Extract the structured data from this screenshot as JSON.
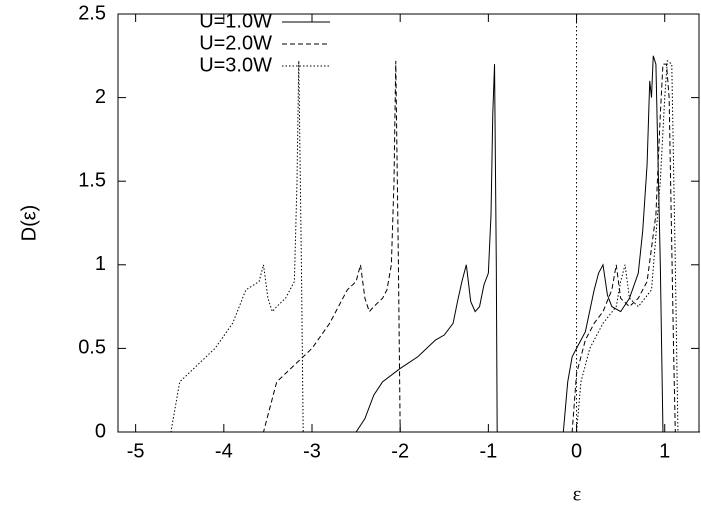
{
  "chart_data": {
    "type": "line",
    "xlabel": "ε",
    "ylabel": "D(ε)",
    "xlim": [
      -5.2,
      1.4
    ],
    "ylim": [
      0,
      2.5
    ],
    "xticks": [
      -5,
      -4,
      -3,
      -2,
      -1,
      0,
      1
    ],
    "yticks": [
      0,
      0.5,
      1,
      1.5,
      2,
      2.5
    ],
    "xzeroaxis": true,
    "legend": "top-left",
    "series": [
      {
        "name": "U=1.0W",
        "color": "#000000",
        "dash": "solid",
        "x": [
          -5.2,
          -2.5,
          -2.4,
          -2.3,
          -2.2,
          -2.0,
          -1.8,
          -1.6,
          -1.5,
          -1.4,
          -1.35,
          -1.3,
          -1.25,
          -1.2,
          -1.15,
          -1.1,
          -1.05,
          -1.0,
          -0.97,
          -0.95,
          -0.93,
          -0.91,
          -0.9,
          -0.15,
          -0.1,
          -0.05,
          0,
          0.1,
          0.2,
          0.25,
          0.3,
          0.35,
          0.4,
          0.5,
          0.6,
          0.7,
          0.75,
          0.8,
          0.83,
          0.85,
          0.87,
          0.9,
          0.95,
          0.98,
          1.4
        ],
        "values": [
          0,
          0,
          0.08,
          0.22,
          0.3,
          0.38,
          0.45,
          0.55,
          0.58,
          0.65,
          0.78,
          0.9,
          1.0,
          0.78,
          0.72,
          0.75,
          0.88,
          0.95,
          1.3,
          1.9,
          2.2,
          1.0,
          0,
          0,
          0.3,
          0.45,
          0.5,
          0.6,
          0.85,
          0.95,
          1.0,
          0.82,
          0.75,
          0.72,
          0.8,
          0.95,
          1.2,
          1.6,
          2.1,
          2.0,
          2.25,
          2.2,
          1.0,
          0,
          0
        ]
      },
      {
        "name": "U=2.0W",
        "color": "#000000",
        "dash": "dashed",
        "x": [
          -5.2,
          -3.55,
          -3.4,
          -3.2,
          -3.0,
          -2.8,
          -2.6,
          -2.5,
          -2.45,
          -2.4,
          -2.35,
          -2.3,
          -2.2,
          -2.15,
          -2.1,
          -2.07,
          -2.05,
          -2.02,
          -2.0,
          -0.05,
          0,
          0.1,
          0.2,
          0.3,
          0.4,
          0.45,
          0.5,
          0.6,
          0.7,
          0.8,
          0.9,
          0.95,
          0.98,
          1.02,
          1.05,
          1.1,
          1.12,
          1.4
        ],
        "values": [
          0,
          0,
          0.3,
          0.4,
          0.5,
          0.65,
          0.85,
          0.9,
          1.0,
          0.8,
          0.72,
          0.75,
          0.8,
          0.85,
          1.0,
          1.5,
          2.22,
          1.0,
          0,
          0,
          0.35,
          0.55,
          0.65,
          0.72,
          0.85,
          1.0,
          0.8,
          0.75,
          0.8,
          0.9,
          1.3,
          1.9,
          2.2,
          2.2,
          2.0,
          0.5,
          0,
          0
        ]
      },
      {
        "name": "U=3.0W",
        "color": "#000000",
        "dash": "dotted",
        "x": [
          -5.2,
          -4.6,
          -4.5,
          -4.3,
          -4.1,
          -3.9,
          -3.75,
          -3.6,
          -3.55,
          -3.5,
          -3.45,
          -3.4,
          -3.3,
          -3.2,
          -3.17,
          -3.15,
          -3.12,
          -3.1,
          0,
          0.05,
          0.15,
          0.3,
          0.45,
          0.5,
          0.55,
          0.6,
          0.7,
          0.85,
          0.95,
          1.0,
          1.03,
          1.08,
          1.12,
          1.15,
          1.4
        ],
        "values": [
          0,
          0,
          0.3,
          0.4,
          0.5,
          0.65,
          0.85,
          0.9,
          1.0,
          0.8,
          0.72,
          0.75,
          0.8,
          0.9,
          1.5,
          2.22,
          1.0,
          0,
          0,
          0.3,
          0.5,
          0.65,
          0.75,
          0.9,
          1.0,
          0.8,
          0.75,
          0.85,
          1.5,
          2.0,
          2.22,
          2.2,
          1.0,
          0,
          0
        ]
      }
    ]
  }
}
